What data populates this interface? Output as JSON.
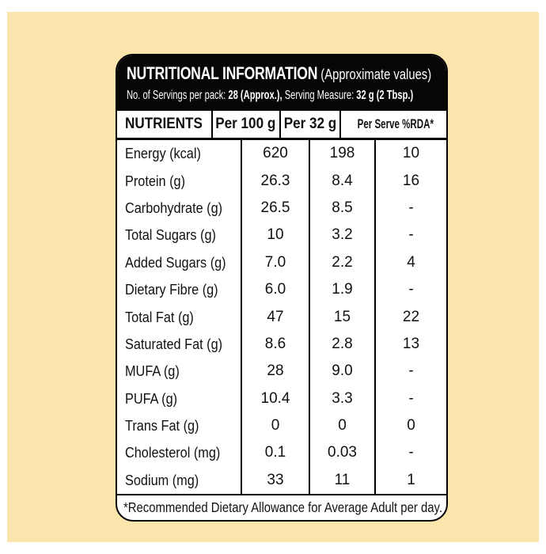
{
  "label": {
    "header": {
      "title": "NUTRITIONAL INFORMATION",
      "title_suffix": " (Approximate values)",
      "servings": [
        "No. of Servings per pack: ",
        "28 (Approx.),",
        " Serving Measure: ",
        "32 g (2 Tbsp.)"
      ]
    },
    "table": {
      "columns": [
        "NUTRIENTS",
        "Per 100 g",
        "Per 32 g",
        "Per Serve %RDA*"
      ],
      "rows": [
        [
          "Energy (kcal)",
          "620",
          "198",
          "10"
        ],
        [
          "Protein (g)",
          "26.3",
          "8.4",
          "16"
        ],
        [
          "Carbohydrate (g)",
          "26.5",
          "8.5",
          "-"
        ],
        [
          "Total Sugars (g)",
          "10",
          "3.2",
          "-"
        ],
        [
          "Added Sugars (g)",
          "7.0",
          "2.2",
          "4"
        ],
        [
          "Dietary Fibre (g)",
          "6.0",
          "1.9",
          "-"
        ],
        [
          "Total Fat (g)",
          "47",
          "15",
          "22"
        ],
        [
          "Saturated Fat (g)",
          "8.6",
          "2.8",
          "13"
        ],
        [
          "MUFA (g)",
          "28",
          "9.0",
          "-"
        ],
        [
          "PUFA (g)",
          "10.4",
          "3.3",
          "-"
        ],
        [
          "Trans Fat (g)",
          "0",
          "0",
          "0"
        ],
        [
          "Cholesterol (mg)",
          "0.1",
          "0.03",
          "-"
        ],
        [
          "Sodium (mg)",
          "33",
          "11",
          "1"
        ]
      ]
    },
    "footnote": "*Recommended Dietary Allowance for Average Adult per day."
  },
  "colors": {
    "canvas_white": "#FFFFFF",
    "backdrop_cream": "#FBE5AD",
    "header_black": "#060606",
    "text_black": "#111111"
  }
}
